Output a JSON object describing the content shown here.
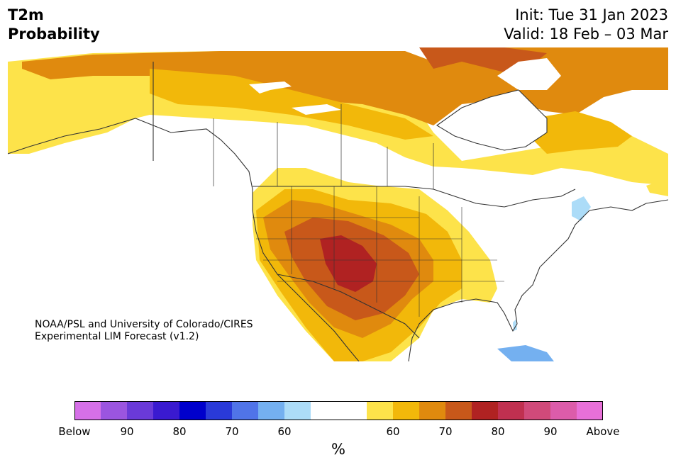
{
  "header": {
    "variable": "T2m",
    "subtitle": "Probability",
    "init": "Init: Tue 31 Jan 2023",
    "valid": "Valid: 18 Feb – 03 Mar"
  },
  "credit": {
    "line1": "NOAA/PSL and University of Colorado/CIRES",
    "line2": "Experimental LIM Forecast (v1.2)"
  },
  "colorbar": {
    "unit": "%",
    "tick_labels": [
      "Below",
      "90",
      "80",
      "70",
      "60",
      "60",
      "70",
      "80",
      "90",
      "Above"
    ],
    "below_colors": [
      "#d670e8",
      "#9b55e0",
      "#6a3ad8",
      "#3a1ad0",
      "#0000cc",
      "#2a3ad8",
      "#5074e8",
      "#74b0f0",
      "#acdcf8"
    ],
    "neutral_color": "#ffffff",
    "above_colors": [
      "#fde34a",
      "#f2b80a",
      "#e08a0e",
      "#c8581a",
      "#b02222",
      "#c03050",
      "#d04a7a",
      "#dc5caa",
      "#e870d8"
    ]
  },
  "map": {
    "region": "North America",
    "land_neutral": "#ffffff",
    "boundary_color": "#333333"
  }
}
